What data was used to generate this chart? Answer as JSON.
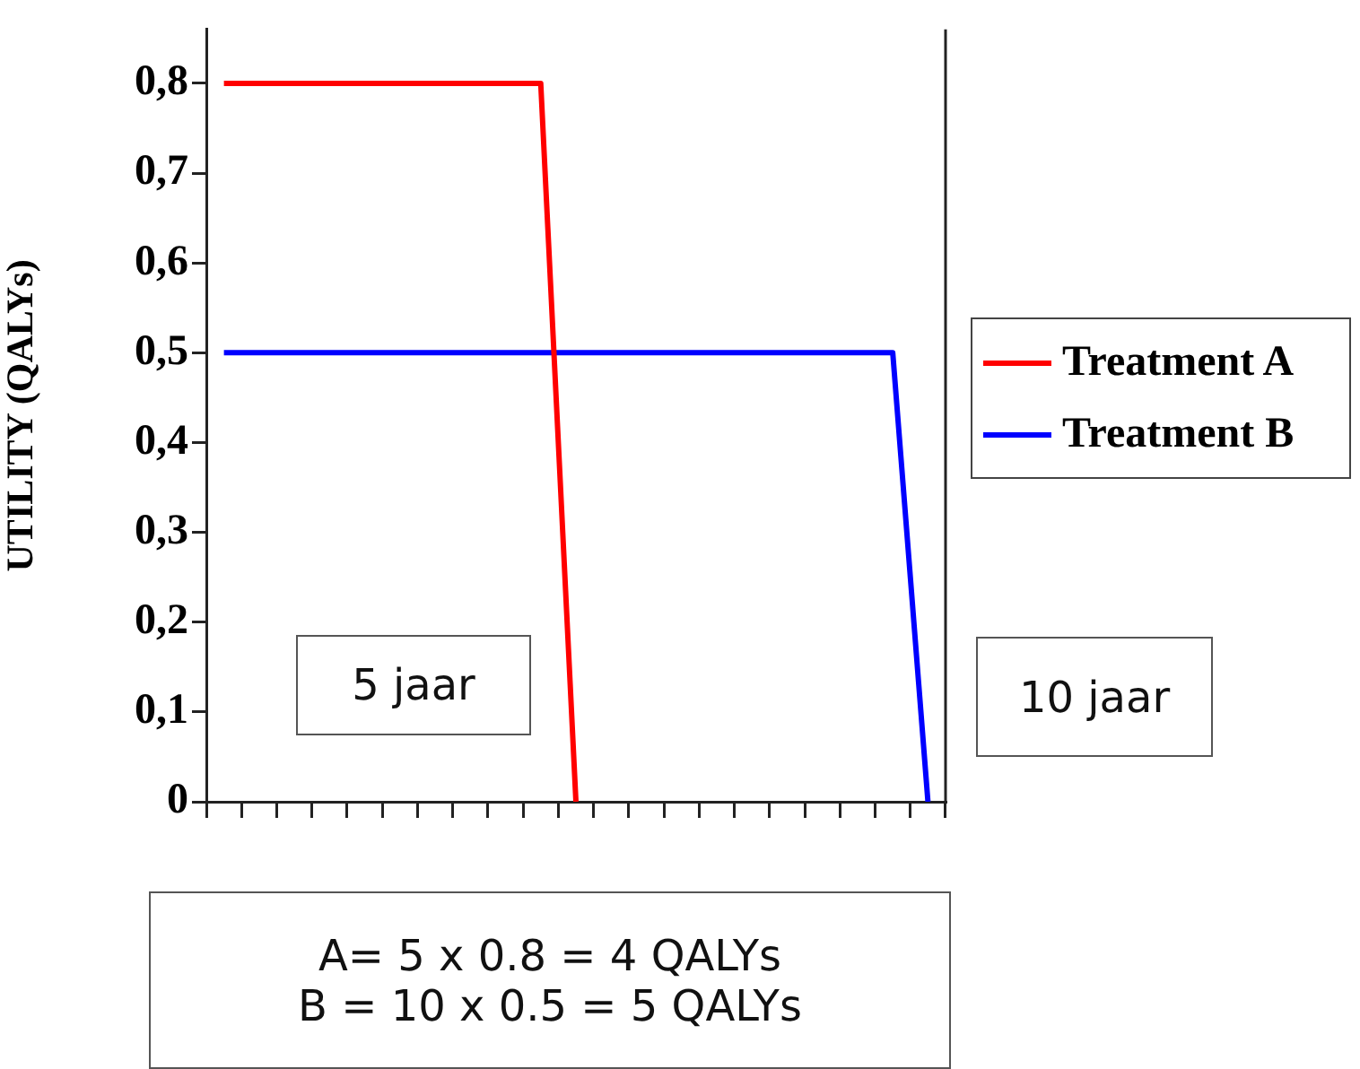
{
  "chart_data": {
    "type": "line",
    "ylabel": "UTILITY (QALYs)",
    "categories": [
      null,
      null,
      null,
      null,
      null,
      null,
      null,
      null,
      null,
      null,
      null,
      null,
      null,
      null,
      null,
      null,
      null,
      null,
      null,
      null,
      null
    ],
    "series": [
      {
        "name": "Treatment A",
        "color": "#ff0000",
        "values": [
          0.8,
          0.8,
          0.8,
          0.8,
          0.8,
          0.8,
          0.8,
          0.8,
          0.8,
          0.8,
          0,
          null,
          null,
          null,
          null,
          null,
          null,
          null,
          null,
          null,
          null
        ]
      },
      {
        "name": "Treatment B",
        "color": "#0000ff",
        "values": [
          0.5,
          0.5,
          0.5,
          0.5,
          0.5,
          0.5,
          0.5,
          0.5,
          0.5,
          0.5,
          0.5,
          0.5,
          0.5,
          0.5,
          0.5,
          0.5,
          0.5,
          0.5,
          0.5,
          0.5,
          0
        ]
      }
    ],
    "ylim": [
      0,
      0.86
    ],
    "yticks": [
      {
        "value": 0,
        "label": "0"
      },
      {
        "value": 0.1,
        "label": "0,1"
      },
      {
        "value": 0.2,
        "label": "0,2"
      },
      {
        "value": 0.3,
        "label": "0,3"
      },
      {
        "value": 0.4,
        "label": "0,4"
      },
      {
        "value": 0.5,
        "label": "0,5"
      },
      {
        "value": 0.6,
        "label": "0,6"
      },
      {
        "value": 0.7,
        "label": "0,7"
      },
      {
        "value": 0.8,
        "label": "0,8"
      }
    ],
    "tick_labels": "y",
    "grid": false,
    "legend": "right",
    "marker": "none",
    "line_style": "solid",
    "annotations": [
      "5 jaar",
      "10 jaar",
      "A= 5 x 0.8 = 4 QALYs\nB = 10 x 0.5 = 5 QALYs"
    ]
  }
}
